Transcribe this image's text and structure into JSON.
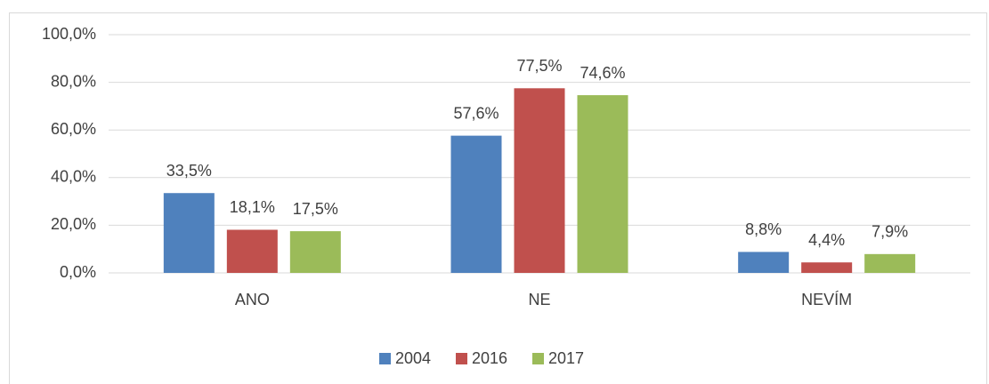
{
  "chart_data": {
    "type": "bar",
    "categories": [
      "ANO",
      "NE",
      "NEVÍM"
    ],
    "series": [
      {
        "name": "2004",
        "color": "#4f81bd",
        "values": [
          33.5,
          57.6,
          8.8
        ],
        "value_labels": [
          "33,5%",
          "57,6%",
          "8,8%"
        ]
      },
      {
        "name": "2016",
        "color": "#c0504d",
        "values": [
          18.1,
          77.5,
          4.4
        ],
        "value_labels": [
          "18,1%",
          "77,5%",
          "4,4%"
        ]
      },
      {
        "name": "2017",
        "color": "#9bbb59",
        "values": [
          17.5,
          74.6,
          7.9
        ],
        "value_labels": [
          "17,5%",
          "74,6%",
          "7,9%"
        ]
      }
    ],
    "ylim": [
      0,
      100
    ],
    "yticks": [
      {
        "value": 0,
        "label": "0,0%"
      },
      {
        "value": 20,
        "label": "20,0%"
      },
      {
        "value": 40,
        "label": "40,0%"
      },
      {
        "value": 60,
        "label": "60,0%"
      },
      {
        "value": 80,
        "label": "80,0%"
      },
      {
        "value": 100,
        "label": "100,0%"
      }
    ],
    "grid": true,
    "legend": "bottom"
  }
}
